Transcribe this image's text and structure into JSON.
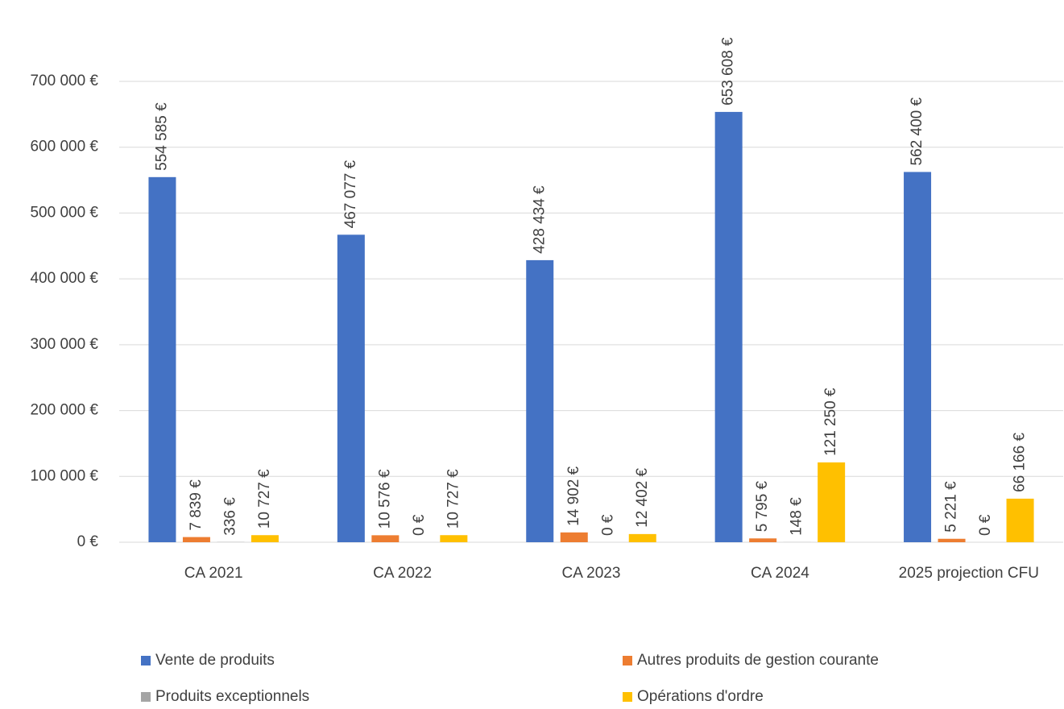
{
  "chart_data": {
    "type": "bar",
    "categories": [
      "CA 2021",
      "CA 2022",
      "CA 2023",
      "CA 2024",
      "2025 projection CFU"
    ],
    "series": [
      {
        "name": "Vente de produits",
        "color": "#4472c4",
        "values": [
          554585,
          467077,
          428434,
          653608,
          562400
        ],
        "value_labels": [
          "554 585 €",
          "467 077 €",
          "428 434 €",
          "653 608 €",
          "562 400 €"
        ]
      },
      {
        "name": "Autres produits de gestion courante",
        "color": "#ed7d31",
        "values": [
          7839,
          10576,
          14902,
          5795,
          5221
        ],
        "value_labels": [
          "7 839 €",
          "10 576 €",
          "14 902 €",
          "5 795 €",
          "5 221 €"
        ]
      },
      {
        "name": "Produits exceptionnels",
        "color": "#a5a5a5",
        "values": [
          336,
          0,
          0,
          148,
          0
        ],
        "value_labels": [
          "336 €",
          "0 €",
          "0 €",
          "148 €",
          "0 €"
        ]
      },
      {
        "name": "Opérations d'ordre",
        "color": "#ffc000",
        "values": [
          10727,
          10727,
          12402,
          121250,
          66166
        ],
        "value_labels": [
          "10 727 €",
          "10 727 €",
          "12 402 €",
          "121 250 €",
          "66 166 €"
        ]
      }
    ],
    "ylim": [
      0,
      700000
    ],
    "yticks": [
      {
        "value": 0,
        "label": "0 €"
      },
      {
        "value": 100000,
        "label": "100 000 €"
      },
      {
        "value": 200000,
        "label": "200 000 €"
      },
      {
        "value": 300000,
        "label": "300 000 €"
      },
      {
        "value": 400000,
        "label": "400 000 €"
      },
      {
        "value": 500000,
        "label": "500 000 €"
      },
      {
        "value": 600000,
        "label": "600 000 €"
      },
      {
        "value": 700000,
        "label": "700 000 €"
      }
    ],
    "grid": true,
    "legend": "bottom"
  }
}
